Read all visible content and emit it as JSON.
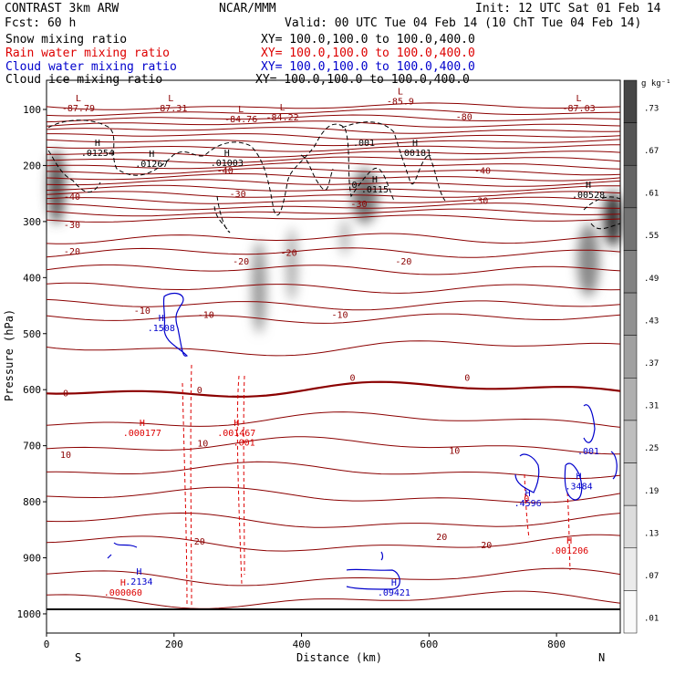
{
  "header": {
    "model": "CONTRAST   3km ARW",
    "center": "NCAR/MMM",
    "init": "Init: 12 UTC Sat 01 Feb 14",
    "fcst": "Fcst:    60 h",
    "valid": "Valid: 00 UTC Tue 04 Feb 14 (10 ChT Tue 04 Feb 14)"
  },
  "legend": [
    {
      "field": "Snow mixing ratio",
      "xy": "XY= 100.0,100.0 to 100.0,400.0",
      "color": "#000000"
    },
    {
      "field": "Rain water mixing ratio",
      "xy": "XY= 100.0,100.0 to 100.0,400.0",
      "color": "#dd0000"
    },
    {
      "field": "Cloud water mixing ratio",
      "xy": "XY= 100.0,100.0 to 100.0,400.0",
      "color": "#0000cc"
    },
    {
      "field": "Cloud ice mixing ratio",
      "xy": "XY= 100.0,100.0 to 100.0,400.0",
      "color": "#000000"
    }
  ],
  "chart_data": {
    "type": "cross-section",
    "xlabel": "Distance (km)",
    "ylabel": "Pressure (hPa)",
    "xlim": [
      0,
      900
    ],
    "ylim": [
      1040,
      50
    ],
    "x_ticks": [
      0,
      200,
      400,
      600,
      800
    ],
    "y_ticks": [
      100,
      200,
      300,
      400,
      500,
      600,
      700,
      800,
      900,
      1000
    ],
    "end_labels": {
      "left": "S",
      "right": "N"
    },
    "colorbar": {
      "unit": "g kg⁻¹",
      "labels": [
        ".73",
        ".67",
        ".61",
        ".55",
        ".49",
        ".43",
        ".37",
        ".31",
        ".25",
        ".19",
        ".13",
        ".07",
        ".01"
      ]
    },
    "temperature_contours": {
      "color": "#8b0000",
      "labels": [
        {
          "x": 280,
          "p": 208,
          "text": "-40"
        },
        {
          "x": 684,
          "p": 208,
          "text": "-40"
        },
        {
          "x": 40,
          "p": 255,
          "text": "-40"
        },
        {
          "x": 40,
          "p": 305,
          "text": "-30"
        },
        {
          "x": 300,
          "p": 250,
          "text": "-30"
        },
        {
          "x": 680,
          "p": 262,
          "text": "-30"
        },
        {
          "x": 490,
          "p": 268,
          "text": "-30"
        },
        {
          "x": 40,
          "p": 352,
          "text": "-20"
        },
        {
          "x": 380,
          "p": 355,
          "text": "-20"
        },
        {
          "x": 305,
          "p": 370,
          "text": "-20"
        },
        {
          "x": 560,
          "p": 370,
          "text": "-20"
        },
        {
          "x": 150,
          "p": 458,
          "text": "-10"
        },
        {
          "x": 250,
          "p": 465,
          "text": "-10"
        },
        {
          "x": 460,
          "p": 465,
          "text": "-10"
        },
        {
          "x": 30,
          "p": 605,
          "text": "0"
        },
        {
          "x": 240,
          "p": 600,
          "text": "0"
        },
        {
          "x": 480,
          "p": 578,
          "text": "0"
        },
        {
          "x": 660,
          "p": 578,
          "text": "0"
        },
        {
          "x": 30,
          "p": 715,
          "text": "10"
        },
        {
          "x": 245,
          "p": 695,
          "text": "10"
        },
        {
          "x": 640,
          "p": 708,
          "text": "10"
        },
        {
          "x": 240,
          "p": 870,
          "text": "20"
        },
        {
          "x": 620,
          "p": 862,
          "text": "20"
        },
        {
          "x": 690,
          "p": 876,
          "text": "20"
        },
        {
          "x": 655,
          "p": 112,
          "text": "-80"
        }
      ]
    },
    "extrema_labels": [
      {
        "x": 50,
        "p": 85,
        "kind": "L",
        "value": "-87.79",
        "color": "#8b0000"
      },
      {
        "x": 195,
        "p": 85,
        "kind": "L",
        "value": "-87.31",
        "color": "#8b0000"
      },
      {
        "x": 305,
        "p": 105,
        "kind": "L",
        "value": "-84.76",
        "color": "#8b0000"
      },
      {
        "x": 370,
        "p": 102,
        "kind": "L",
        "value": "-84.22",
        "color": "#8b0000"
      },
      {
        "x": 555,
        "p": 73,
        "kind": "L",
        "value": "-85.9",
        "color": "#8b0000"
      },
      {
        "x": 835,
        "p": 85,
        "kind": "L",
        "value": "-87.03",
        "color": "#8b0000"
      },
      {
        "x": 80,
        "p": 165,
        "kind": "H",
        "value": ".01254",
        "color": "#000000"
      },
      {
        "x": 165,
        "p": 185,
        "kind": "H",
        "value": ".01267",
        "color": "#000000"
      },
      {
        "x": 283,
        "p": 183,
        "kind": "H",
        "value": ".01003",
        "color": "#000000"
      },
      {
        "x": 578,
        "p": 165,
        "kind": "H",
        "value": ".00181",
        "color": "#000000"
      },
      {
        "x": 515,
        "p": 230,
        "kind": "H",
        "value": ".0115",
        "color": "#000000"
      },
      {
        "x": 850,
        "p": 240,
        "kind": "H",
        "value": ".00528",
        "color": "#000000"
      },
      {
        "x": 180,
        "p": 478,
        "kind": "H",
        "value": ".1508",
        "color": "#0000cc"
      },
      {
        "x": 150,
        "p": 665,
        "kind": "H",
        "value": ".000177",
        "color": "#dd0000"
      },
      {
        "x": 298,
        "p": 665,
        "kind": "H",
        "value": ".001467",
        "color": "#dd0000"
      },
      {
        "x": 145,
        "p": 930,
        "kind": "H",
        "value": ".2134",
        "color": "#0000cc"
      },
      {
        "x": 120,
        "p": 950,
        "kind": "H",
        "value": ".000060",
        "color": "#dd0000"
      },
      {
        "x": 545,
        "p": 950,
        "kind": "H",
        "value": ".09421",
        "color": "#0000cc"
      },
      {
        "x": 755,
        "p": 790,
        "kind": "H",
        "value": ".4596",
        "color": "#0000cc"
      },
      {
        "x": 835,
        "p": 760,
        "kind": "H",
        "value": ".3484",
        "color": "#0000cc"
      },
      {
        "x": 820,
        "p": 875,
        "kind": "H",
        "value": ".001206",
        "color": "#dd0000"
      }
    ],
    "extra_labels": [
      {
        "x": 498,
        "p": 165,
        "text": ".001",
        "color": "#000000"
      },
      {
        "x": 310,
        "p": 700,
        "text": ".001",
        "color": "#dd0000"
      },
      {
        "x": 850,
        "p": 715,
        "text": ".001",
        "color": "#0000cc"
      },
      {
        "x": 483,
        "p": 240,
        "text": "0",
        "color": "#000000"
      },
      {
        "x": 753,
        "p": 800,
        "text": "0",
        "color": "#dd0000"
      }
    ]
  }
}
